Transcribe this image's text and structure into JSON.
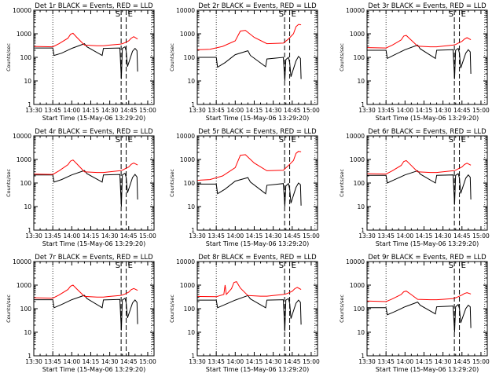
{
  "xlabel": "Start Time (15-May-06 13:29:20)",
  "ylabel": "Counts/sec",
  "x_ticks": [
    "13:30",
    "13:45",
    "14:00",
    "14:15",
    "14:30",
    "14:45",
    "15:00"
  ],
  "y_ticks": [
    "1",
    "10",
    "100",
    "1000",
    "10000"
  ],
  "marker_labels": [
    "S",
    "E"
  ],
  "colors": {
    "events": "#000000",
    "lld": "#ff0000",
    "axis": "#000000",
    "background": "#ffffff"
  },
  "chart_data": [
    {
      "type": "line",
      "title": "Det 1r BLACK = Events, RED = LLD",
      "xlabel": "Start Time (15-May-06 13:29:20)",
      "ylabel": "Counts/sec",
      "xlim_min": [
        0,
        95
      ],
      "ylim": [
        1,
        10000
      ],
      "yscale": "log",
      "vlines_dotted_min": [
        15,
        93
      ],
      "vlines_dashed_min": [
        69,
        73
      ],
      "series": [
        {
          "name": "Events",
          "color": "#000000",
          "x_min": [
            0,
            15,
            16,
            22,
            30,
            40,
            42,
            54,
            55,
            68,
            69.2,
            70,
            72,
            73,
            74,
            78,
            80,
            81.5,
            82
          ],
          "y": [
            250,
            250,
            120,
            150,
            240,
            380,
            280,
            120,
            240,
            250,
            12,
            240,
            280,
            180,
            40,
            180,
            240,
            190,
            25
          ]
        },
        {
          "name": "LLD",
          "color": "#ff0000",
          "x_min": [
            0,
            15,
            20,
            27,
            29,
            31,
            34,
            40,
            50,
            55,
            60,
            68,
            70,
            72,
            75,
            77,
            79,
            82
          ],
          "y": [
            290,
            280,
            380,
            650,
            950,
            1050,
            700,
            330,
            310,
            310,
            330,
            360,
            380,
            420,
            500,
            650,
            750,
            600
          ]
        }
      ]
    },
    {
      "type": "line",
      "title": "Det 2r BLACK = Events, RED = LLD",
      "xlabel": "Start Time (15-May-06 13:29:20)",
      "ylabel": "Counts/sec",
      "xlim_min": [
        0,
        95
      ],
      "ylim": [
        1,
        10000
      ],
      "yscale": "log",
      "vlines_dotted_min": [
        15,
        93
      ],
      "vlines_dashed_min": [
        69,
        73
      ],
      "series": [
        {
          "name": "Events",
          "color": "#000000",
          "x_min": [
            0,
            15,
            16,
            22,
            30,
            40,
            42,
            54,
            55,
            68,
            69.2,
            70,
            72,
            73,
            74,
            78,
            80,
            81.5,
            82
          ],
          "y": [
            100,
            100,
            38,
            60,
            130,
            190,
            120,
            40,
            85,
            100,
            10,
            80,
            100,
            60,
            15,
            70,
            110,
            90,
            12
          ]
        },
        {
          "name": "LLD",
          "color": "#ff0000",
          "x_min": [
            0,
            10,
            20,
            30,
            34,
            38,
            45,
            55,
            68,
            72,
            76,
            78,
            80,
            82
          ],
          "y": [
            210,
            220,
            290,
            500,
            1300,
            1400,
            700,
            380,
            400,
            600,
            1000,
            2000,
            2500,
            2400
          ]
        }
      ]
    },
    {
      "type": "line",
      "title": "Det 3r BLACK = Events, RED = LLD",
      "xlabel": "Start Time (15-May-06 13:29:20)",
      "ylabel": "Counts/sec",
      "xlim_min": [
        0,
        95
      ],
      "ylim": [
        1,
        10000
      ],
      "yscale": "log",
      "vlines_dotted_min": [
        15,
        93
      ],
      "vlines_dashed_min": [
        69,
        73
      ],
      "series": [
        {
          "name": "Events",
          "color": "#000000",
          "x_min": [
            0,
            15,
            16,
            22,
            30,
            40,
            42,
            54,
            55,
            68,
            69.2,
            70,
            72,
            73,
            74,
            78,
            80,
            81.5,
            82
          ],
          "y": [
            200,
            200,
            90,
            130,
            210,
            330,
            230,
            90,
            200,
            210,
            12,
            200,
            240,
            150,
            35,
            150,
            210,
            170,
            20
          ]
        },
        {
          "name": "LLD",
          "color": "#ff0000",
          "x_min": [
            0,
            15,
            20,
            27,
            29,
            31,
            34,
            40,
            50,
            55,
            60,
            68,
            70,
            72,
            75,
            77,
            79,
            82
          ],
          "y": [
            260,
            250,
            330,
            550,
            800,
            850,
            600,
            300,
            280,
            280,
            300,
            330,
            350,
            400,
            480,
            600,
            680,
            560
          ]
        }
      ]
    },
    {
      "type": "line",
      "title": "Det 4r BLACK = Events, RED = LLD",
      "xlabel": "Start Time (15-May-06 13:29:20)",
      "ylabel": "Counts/sec",
      "xlim_min": [
        0,
        95
      ],
      "ylim": [
        1,
        10000
      ],
      "yscale": "log",
      "vlines_dotted_min": [
        15,
        93
      ],
      "vlines_dashed_min": [
        69,
        73
      ],
      "series": [
        {
          "name": "Events",
          "color": "#000000",
          "x_min": [
            0,
            15,
            16,
            22,
            30,
            40,
            42,
            54,
            55,
            68,
            69.2,
            70,
            72,
            73,
            74,
            78,
            80,
            81.5,
            82
          ],
          "y": [
            220,
            220,
            110,
            140,
            220,
            340,
            250,
            110,
            220,
            230,
            10,
            220,
            260,
            170,
            38,
            170,
            230,
            180,
            20
          ]
        },
        {
          "name": "LLD",
          "color": "#ff0000",
          "x_min": [
            0,
            15,
            20,
            27,
            29,
            31,
            34,
            40,
            50,
            55,
            60,
            68,
            70,
            72,
            75,
            77,
            79,
            82
          ],
          "y": [
            240,
            230,
            330,
            600,
            850,
            950,
            650,
            300,
            280,
            280,
            300,
            330,
            350,
            400,
            480,
            620,
            700,
            580
          ]
        }
      ]
    },
    {
      "type": "line",
      "title": "Det 5r BLACK = Events, RED = LLD",
      "xlabel": "Start Time (15-May-06 13:29:20)",
      "ylabel": "Counts/sec",
      "xlim_min": [
        0,
        95
      ],
      "ylim": [
        1,
        10000
      ],
      "yscale": "log",
      "vlines_dotted_min": [
        15,
        93
      ],
      "vlines_dashed_min": [
        69,
        73
      ],
      "series": [
        {
          "name": "Events",
          "color": "#000000",
          "x_min": [
            0,
            15,
            16,
            22,
            30,
            40,
            42,
            54,
            55,
            68,
            69.2,
            70,
            72,
            73,
            74,
            78,
            80,
            81.5,
            82
          ],
          "y": [
            90,
            90,
            35,
            55,
            120,
            170,
            110,
            35,
            80,
            95,
            10,
            75,
            95,
            55,
            14,
            65,
            100,
            85,
            11
          ]
        },
        {
          "name": "LLD",
          "color": "#ff0000",
          "x_min": [
            0,
            10,
            20,
            30,
            34,
            38,
            45,
            55,
            68,
            72,
            76,
            78,
            80,
            82
          ],
          "y": [
            130,
            140,
            200,
            450,
            1500,
            1600,
            700,
            330,
            350,
            550,
            900,
            1800,
            2200,
            2100
          ]
        }
      ]
    },
    {
      "type": "line",
      "title": "Det 6r BLACK = Events, RED = LLD",
      "xlabel": "Start Time (15-May-06 13:29:20)",
      "ylabel": "Counts/sec",
      "xlim_min": [
        0,
        95
      ],
      "ylim": [
        1,
        10000
      ],
      "yscale": "log",
      "vlines_dotted_min": [
        15,
        93
      ],
      "vlines_dashed_min": [
        69,
        73
      ],
      "series": [
        {
          "name": "Events",
          "color": "#000000",
          "x_min": [
            0,
            15,
            16,
            22,
            30,
            40,
            42,
            54,
            55,
            68,
            69.2,
            70,
            72,
            73,
            74,
            78,
            80,
            81.5,
            82
          ],
          "y": [
            210,
            210,
            100,
            140,
            220,
            330,
            240,
            100,
            210,
            220,
            12,
            210,
            250,
            160,
            36,
            160,
            220,
            175,
            20
          ]
        },
        {
          "name": "LLD",
          "color": "#ff0000",
          "x_min": [
            0,
            15,
            20,
            27,
            29,
            31,
            34,
            40,
            50,
            55,
            60,
            68,
            70,
            72,
            75,
            77,
            79,
            82
          ],
          "y": [
            250,
            240,
            330,
            560,
            820,
            900,
            620,
            300,
            280,
            280,
            300,
            330,
            350,
            400,
            480,
            610,
            690,
            570
          ]
        }
      ]
    },
    {
      "type": "line",
      "title": "Det 7r BLACK = Events, RED = LLD",
      "xlabel": "Start Time (15-May-06 13:29:20)",
      "ylabel": "Counts/sec",
      "xlim_min": [
        0,
        95
      ],
      "ylim": [
        1,
        10000
      ],
      "yscale": "log",
      "vlines_dotted_min": [
        15,
        93
      ],
      "vlines_dashed_min": [
        69,
        73
      ],
      "series": [
        {
          "name": "Events",
          "color": "#000000",
          "x_min": [
            0,
            15,
            16,
            22,
            30,
            40,
            42,
            54,
            55,
            68,
            69.2,
            70,
            72,
            73,
            74,
            78,
            80,
            81.5,
            82
          ],
          "y": [
            240,
            240,
            110,
            150,
            240,
            370,
            270,
            110,
            235,
            245,
            12,
            235,
            275,
            175,
            40,
            175,
            235,
            185,
            22
          ]
        },
        {
          "name": "LLD",
          "color": "#ff0000",
          "x_min": [
            0,
            15,
            20,
            27,
            29,
            31,
            34,
            40,
            50,
            55,
            60,
            68,
            70,
            72,
            75,
            77,
            79,
            82
          ],
          "y": [
            290,
            280,
            380,
            650,
            900,
            1000,
            680,
            330,
            310,
            310,
            330,
            360,
            380,
            420,
            500,
            640,
            720,
            600
          ]
        }
      ]
    },
    {
      "type": "line",
      "title": "Det 8r BLACK = Events, RED = LLD",
      "xlabel": "Start Time (15-May-06 13:29:20)",
      "ylabel": "Counts/sec",
      "xlim_min": [
        0,
        95
      ],
      "ylim": [
        1,
        10000
      ],
      "yscale": "log",
      "vlines_dotted_min": [
        15,
        93
      ],
      "vlines_dashed_min": [
        69,
        73
      ],
      "series": [
        {
          "name": "Events",
          "color": "#000000",
          "x_min": [
            0,
            15,
            16,
            22,
            30,
            40,
            42,
            54,
            55,
            68,
            69.2,
            70,
            72,
            73,
            74,
            78,
            80,
            81.5,
            82
          ],
          "y": [
            230,
            230,
            110,
            150,
            230,
            360,
            260,
            110,
            230,
            240,
            11,
            230,
            270,
            170,
            38,
            170,
            230,
            185,
            21
          ]
        },
        {
          "name": "LLD",
          "color": "#ff0000",
          "x_min": [
            0,
            15,
            21,
            22,
            23,
            27,
            29,
            31,
            34,
            40,
            50,
            55,
            60,
            68,
            70,
            72,
            75,
            77,
            79,
            82
          ],
          "y": [
            330,
            320,
            400,
            1000,
            400,
            700,
            1300,
            1400,
            750,
            360,
            340,
            340,
            360,
            400,
            420,
            460,
            550,
            700,
            800,
            650
          ]
        }
      ]
    },
    {
      "type": "line",
      "title": "Det 9r BLACK = Events, RED = LLD",
      "xlabel": "Start Time (15-May-06 13:29:20)",
      "ylabel": "Counts/sec",
      "xlim_min": [
        0,
        95
      ],
      "ylim": [
        1,
        10000
      ],
      "yscale": "log",
      "vlines_dotted_min": [
        15,
        93
      ],
      "vlines_dashed_min": [
        69,
        73
      ],
      "series": [
        {
          "name": "Events",
          "color": "#000000",
          "x_min": [
            0,
            15,
            16,
            22,
            30,
            40,
            42,
            54,
            55,
            68,
            69.2,
            70,
            72,
            73,
            74,
            78,
            80,
            81.5,
            82
          ],
          "y": [
            110,
            110,
            55,
            75,
            120,
            190,
            140,
            60,
            120,
            130,
            10,
            120,
            150,
            100,
            25,
            100,
            140,
            120,
            15
          ]
        },
        {
          "name": "LLD",
          "color": "#ff0000",
          "x_min": [
            0,
            15,
            20,
            27,
            29,
            31,
            34,
            40,
            50,
            55,
            60,
            68,
            70,
            72,
            75,
            77,
            79,
            82
          ],
          "y": [
            210,
            200,
            260,
            400,
            520,
            560,
            430,
            250,
            240,
            240,
            250,
            270,
            290,
            320,
            380,
            440,
            480,
            420
          ]
        }
      ]
    }
  ]
}
